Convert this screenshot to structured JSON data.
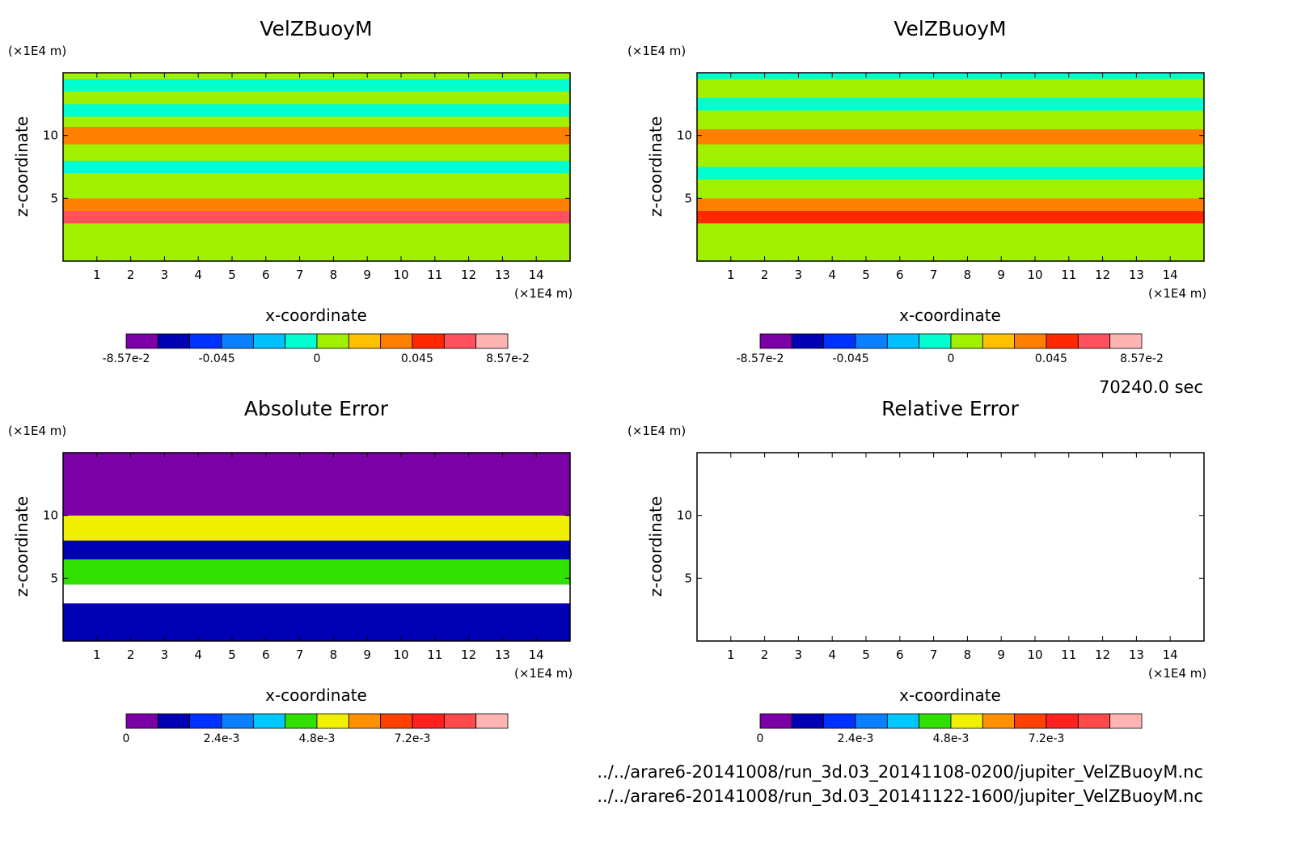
{
  "colors": {
    "vel_levels": [
      "#7b00a6",
      "#0000b4",
      "#0032ff",
      "#0a80ff",
      "#00c0ff",
      "#00ffd0",
      "#a0f000",
      "#ffc000",
      "#ff8000",
      "#ff2800",
      "#ff5060",
      "#ffb4b4"
    ],
    "err_levels": [
      "#7b00a6",
      "#0000b4",
      "#0032ff",
      "#0a80ff",
      "#00c8ff",
      "#30e000",
      "#f0f000",
      "#ff9000",
      "#ff4000",
      "#ff2020",
      "#ff4a4a",
      "#ffb4b4"
    ],
    "background": "#ffffff"
  },
  "chart_data": [
    {
      "id": "panel-1",
      "type": "heatmap",
      "title": "VelZBuoyM",
      "xlabel": "x-coordinate",
      "ylabel": "z-coordinate",
      "x_unit": "(×1E4 m)",
      "y_unit": "(×1E4 m)",
      "xlim": [
        0,
        15
      ],
      "ylim": [
        0,
        15
      ],
      "xticks": [
        "1",
        "2",
        "3",
        "4",
        "5",
        "6",
        "7",
        "8",
        "9",
        "10",
        "11",
        "12",
        "13",
        "14"
      ],
      "yticks": [
        "5",
        "10"
      ],
      "colorbar": {
        "ticks": [
          "-8.57e-2",
          "-0.045",
          "0",
          "0.045",
          "8.57e-2"
        ],
        "min": -0.0857,
        "max": 0.0857,
        "levels": 12
      },
      "bands": [
        {
          "z": [
            0,
            3
          ],
          "value": 0.01
        },
        {
          "z": [
            3,
            4
          ],
          "value": 0.06
        },
        {
          "z": [
            4,
            5
          ],
          "value": 0.035
        },
        {
          "z": [
            5,
            7
          ],
          "value": 0.01
        },
        {
          "z": [
            7,
            8
          ],
          "value": -0.008
        },
        {
          "z": [
            8,
            9.3
          ],
          "value": 0.01
        },
        {
          "z": [
            9.3,
            10.7
          ],
          "value": 0.03
        },
        {
          "z": [
            10.7,
            11.5
          ],
          "value": 0.01
        },
        {
          "z": [
            11.5,
            12.5
          ],
          "value": -0.008
        },
        {
          "z": [
            12.5,
            13.5
          ],
          "value": 0.01
        },
        {
          "z": [
            13.5,
            14.5
          ],
          "value": -0.008
        },
        {
          "z": [
            14.5,
            15
          ],
          "value": 0.01
        }
      ]
    },
    {
      "id": "panel-2",
      "type": "heatmap",
      "title": "VelZBuoyM",
      "xlabel": "x-coordinate",
      "ylabel": "z-coordinate",
      "x_unit": "(×1E4 m)",
      "y_unit": "(×1E4 m)",
      "xlim": [
        0,
        15
      ],
      "ylim": [
        0,
        15
      ],
      "xticks": [
        "1",
        "2",
        "3",
        "4",
        "5",
        "6",
        "7",
        "8",
        "9",
        "10",
        "11",
        "12",
        "13",
        "14"
      ],
      "yticks": [
        "5",
        "10"
      ],
      "colorbar": {
        "ticks": [
          "-8.57e-2",
          "-0.045",
          "0",
          "0.045",
          "8.57e-2"
        ],
        "min": -0.0857,
        "max": 0.0857,
        "levels": 12
      },
      "bands": [
        {
          "z": [
            0,
            3
          ],
          "value": 0.01
        },
        {
          "z": [
            3,
            4
          ],
          "value": 0.055
        },
        {
          "z": [
            4,
            5
          ],
          "value": 0.035
        },
        {
          "z": [
            5,
            6.5
          ],
          "value": 0.01
        },
        {
          "z": [
            6.5,
            7.5
          ],
          "value": -0.008
        },
        {
          "z": [
            7.5,
            9.3
          ],
          "value": 0.01
        },
        {
          "z": [
            9.3,
            10.5
          ],
          "value": 0.03
        },
        {
          "z": [
            10.5,
            12
          ],
          "value": 0.01
        },
        {
          "z": [
            12,
            13
          ],
          "value": -0.008
        },
        {
          "z": [
            13,
            14.5
          ],
          "value": 0.01
        },
        {
          "z": [
            14.5,
            15
          ],
          "value": -0.008
        }
      ]
    },
    {
      "id": "panel-3",
      "type": "heatmap",
      "title": "Absolute Error",
      "xlabel": "x-coordinate",
      "ylabel": "z-coordinate",
      "x_unit": "(×1E4 m)",
      "y_unit": "(×1E4 m)",
      "xlim": [
        0,
        15
      ],
      "ylim": [
        0,
        15
      ],
      "xticks": [
        "1",
        "2",
        "3",
        "4",
        "5",
        "6",
        "7",
        "8",
        "9",
        "10",
        "11",
        "12",
        "13",
        "14"
      ],
      "yticks": [
        "5",
        "10"
      ],
      "colorbar": {
        "ticks": [
          "0",
          "2.4e-3",
          "4.8e-3",
          "7.2e-3"
        ],
        "min": 0,
        "max": 0.0096,
        "levels": 12
      },
      "bands": [
        {
          "z": [
            0,
            3
          ],
          "value": 0.0015
        },
        {
          "z": [
            3,
            4.5
          ],
          "value": 0.0105
        },
        {
          "z": [
            4.5,
            6.5
          ],
          "value": 0.004
        },
        {
          "z": [
            6.5,
            8
          ],
          "value": 0.0015
        },
        {
          "z": [
            8,
            10
          ],
          "value": 0.005
        },
        {
          "z": [
            10,
            15
          ],
          "value": 0.0002
        }
      ]
    },
    {
      "id": "panel-4",
      "type": "heatmap",
      "title": "Relative Error",
      "xlabel": "x-coordinate",
      "ylabel": "z-coordinate",
      "x_unit": "(×1E4 m)",
      "y_unit": "(×1E4 m)",
      "xlim": [
        0,
        15
      ],
      "ylim": [
        0,
        15
      ],
      "xticks": [
        "1",
        "2",
        "3",
        "4",
        "5",
        "6",
        "7",
        "8",
        "9",
        "10",
        "11",
        "12",
        "13",
        "14"
      ],
      "yticks": [
        "5",
        "10"
      ],
      "colorbar": {
        "ticks": [
          "0",
          "2.4e-3",
          "4.8e-3",
          "7.2e-3"
        ],
        "min": 0,
        "max": 0.0096,
        "levels": 12
      },
      "bands": []
    }
  ],
  "time_label": "70240.0 sec",
  "file_paths": [
    "../../arare6-20141008/run_3d.03_20141108-0200/jupiter_VelZBuoyM.nc",
    "../../arare6-20141008/run_3d.03_20141122-1600/jupiter_VelZBuoyM.nc"
  ]
}
